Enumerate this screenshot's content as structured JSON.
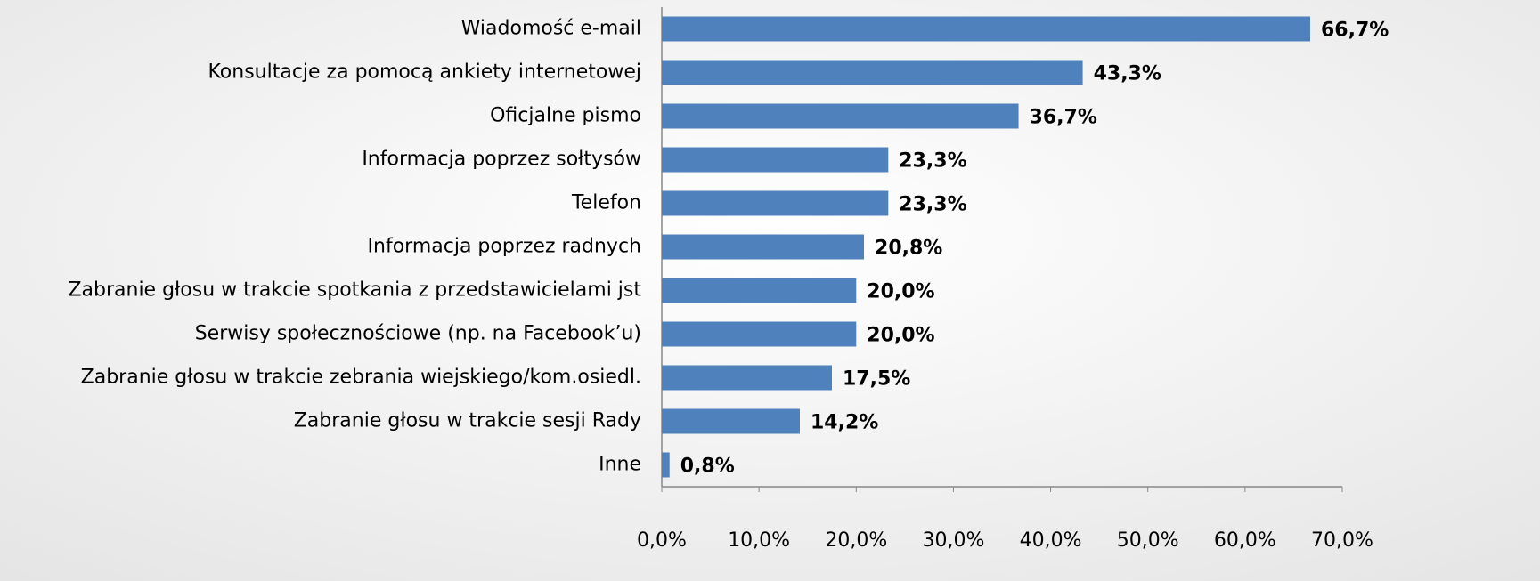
{
  "chart_data": {
    "type": "bar",
    "orientation": "horizontal",
    "categories": [
      "Wiadomość e-mail",
      "Konsultacje za pomocą ankiety internetowej",
      "Oficjalne pismo",
      "Informacja poprzez sołtysów",
      "Telefon",
      "Informacja poprzez radnych",
      "Zabranie głosu w trakcie spotkania z przedstawicielami jst",
      "Serwisy społecznościowe (np. na Facebook’u)",
      "Zabranie głosu w trakcie zebrania wiejskiego/kom.osiedl.",
      "Zabranie głosu w trakcie sesji Rady",
      "Inne"
    ],
    "values": [
      66.7,
      43.3,
      36.7,
      23.3,
      23.3,
      20.8,
      20.0,
      20.0,
      17.5,
      14.2,
      0.8
    ],
    "value_labels": [
      "66,7%",
      "43,3%",
      "36,7%",
      "23,3%",
      "23,3%",
      "20,8%",
      "20,0%",
      "20,0%",
      "17,5%",
      "14,2%",
      "0,8%"
    ],
    "color": "#4f81bd",
    "xlim": [
      0,
      70
    ],
    "xticks": [
      {
        "value": 0,
        "label": "0,0%"
      },
      {
        "value": 10,
        "label": "10,0%"
      },
      {
        "value": 20,
        "label": "20,0%"
      },
      {
        "value": 30,
        "label": "30,0%"
      },
      {
        "value": 40,
        "label": "40,0%"
      },
      {
        "value": 50,
        "label": "50,0%"
      },
      {
        "value": 60,
        "label": "60,0%"
      },
      {
        "value": 70,
        "label": "70,0%"
      }
    ],
    "grid": false
  }
}
